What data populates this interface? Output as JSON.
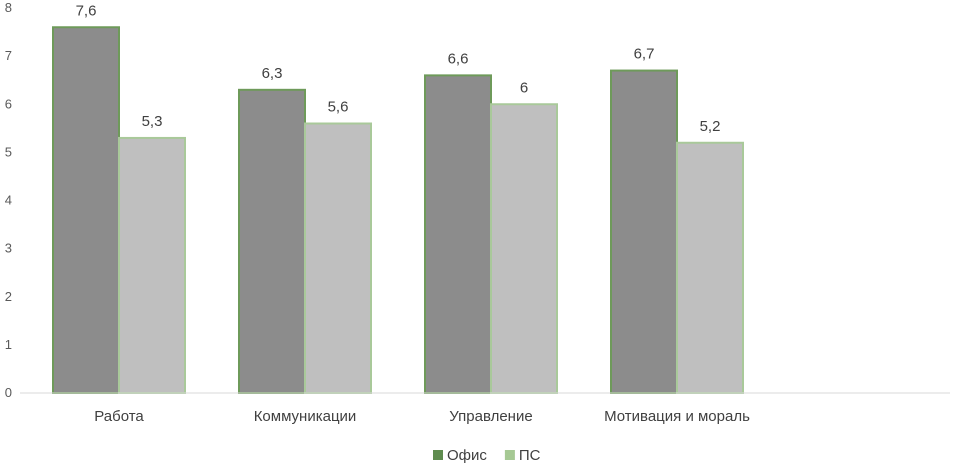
{
  "chart_data": {
    "type": "bar",
    "categories": [
      "Работа",
      "Коммуникации",
      "Управление",
      "Мотивация и мораль"
    ],
    "series": [
      {
        "name": "Офис",
        "values": [
          7.6,
          6.3,
          6.6,
          6.7
        ],
        "labels": [
          "7,6",
          "6,3",
          "6,6",
          "6,7"
        ],
        "color": "#8c8c8c",
        "border": "#6e9a5a"
      },
      {
        "name": "ПС",
        "values": [
          5.3,
          5.6,
          6,
          5.2
        ],
        "labels": [
          "5,3",
          "5,6",
          "6",
          "5,2"
        ],
        "color": "#bfbfbf",
        "border": "#a9c99a"
      }
    ],
    "yticks": [
      "0",
      "1",
      "2",
      "3",
      "4",
      "5",
      "6",
      "7",
      "8"
    ],
    "ylim": [
      0,
      8
    ],
    "grid": false,
    "legend_position": "bottom-center",
    "legend_swatches": {
      "Офис": "#5f8c4f",
      "ПС": "#a6c994"
    },
    "title": "",
    "xlabel": "",
    "ylabel": ""
  }
}
